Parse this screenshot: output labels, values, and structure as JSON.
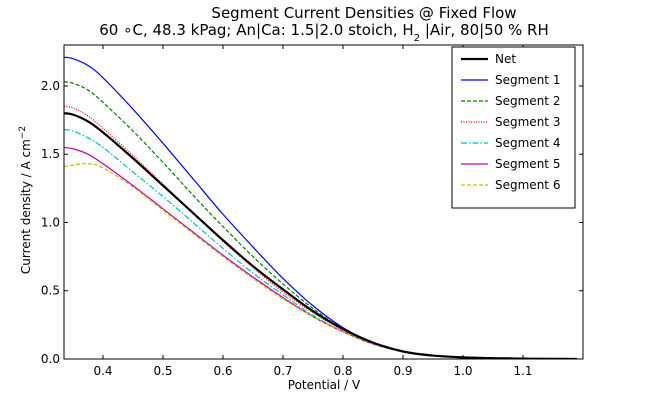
{
  "chart_data": {
    "type": "line",
    "title_line1": "Segment Current Densities @ Fixed Flow",
    "title_line2_parts": [
      "60  ∘C, 48.3 kPag; An|Ca: 1.5|2.0 stoich, H",
      "2",
      " |Air, 80|50 % RH"
    ],
    "xlabel": "Potential / V",
    "ylabel_parts": [
      "Current density / A cm",
      "−2"
    ],
    "xlim": [
      0.335,
      1.2
    ],
    "ylim": [
      0,
      2.3
    ],
    "xticks": [
      0.4,
      0.5,
      0.6,
      0.7,
      0.8,
      0.9,
      1.0,
      1.1
    ],
    "xtick_labels": [
      "0.4",
      "0.5",
      "0.6",
      "0.7",
      "0.8",
      "0.9",
      "1.0",
      "1.1"
    ],
    "yticks": [
      0.0,
      0.5,
      1.0,
      1.5,
      2.0
    ],
    "ytick_labels": [
      "0.0",
      "0.5",
      "1.0",
      "1.5",
      "2.0"
    ],
    "grid": false,
    "legend_position": "top-right",
    "x": [
      0.335,
      0.35,
      0.375,
      0.4,
      0.45,
      0.5,
      0.55,
      0.6,
      0.65,
      0.7,
      0.75,
      0.8,
      0.85,
      0.9,
      0.95,
      1.0,
      1.05,
      1.1,
      1.15,
      1.19
    ],
    "series": [
      {
        "name": "Net",
        "color": "#000000",
        "dash": "solid",
        "width": 2.2,
        "values": [
          1.8,
          1.79,
          1.74,
          1.66,
          1.47,
          1.27,
          1.07,
          0.87,
          0.68,
          0.51,
          0.35,
          0.22,
          0.12,
          0.055,
          0.025,
          0.012,
          0.006,
          0.003,
          0.001,
          0.0
        ]
      },
      {
        "name": "Segment 1",
        "color": "#0000ff",
        "dash": "solid",
        "width": 1.2,
        "values": [
          2.21,
          2.2,
          2.15,
          2.06,
          1.83,
          1.58,
          1.32,
          1.06,
          0.82,
          0.59,
          0.39,
          0.23,
          0.12,
          0.055,
          0.025,
          0.012,
          0.006,
          0.003,
          0.001,
          0.0
        ]
      },
      {
        "name": "Segment 2",
        "color": "#008000",
        "dash": "4,2",
        "width": 1.2,
        "values": [
          2.03,
          2.02,
          1.97,
          1.88,
          1.67,
          1.44,
          1.2,
          0.97,
          0.75,
          0.55,
          0.37,
          0.22,
          0.12,
          0.055,
          0.025,
          0.012,
          0.006,
          0.003,
          0.001,
          0.0
        ]
      },
      {
        "name": "Segment 3",
        "color": "#ff0000",
        "dash": "1,1.5",
        "width": 1.2,
        "values": [
          1.85,
          1.84,
          1.78,
          1.69,
          1.49,
          1.28,
          1.07,
          0.86,
          0.67,
          0.49,
          0.34,
          0.21,
          0.12,
          0.055,
          0.025,
          0.012,
          0.006,
          0.003,
          0.001,
          0.0
        ]
      },
      {
        "name": "Segment 4",
        "color": "#00bfbf",
        "dash": "6,2,1.5,2",
        "width": 1.2,
        "values": [
          1.68,
          1.67,
          1.62,
          1.55,
          1.37,
          1.19,
          1.0,
          0.81,
          0.63,
          0.47,
          0.32,
          0.2,
          0.11,
          0.055,
          0.025,
          0.012,
          0.006,
          0.003,
          0.001,
          0.0
        ]
      },
      {
        "name": "Segment 5",
        "color": "#bf00bf",
        "dash": "solid",
        "width": 1.2,
        "values": [
          1.55,
          1.54,
          1.5,
          1.43,
          1.27,
          1.1,
          0.93,
          0.76,
          0.6,
          0.45,
          0.31,
          0.2,
          0.11,
          0.055,
          0.025,
          0.012,
          0.006,
          0.003,
          0.001,
          0.0
        ]
      },
      {
        "name": "Segment 6",
        "color": "#bfbf00",
        "dash": "4,2",
        "width": 1.2,
        "values": [
          1.41,
          1.42,
          1.43,
          1.4,
          1.26,
          1.09,
          0.92,
          0.75,
          0.59,
          0.44,
          0.31,
          0.2,
          0.11,
          0.055,
          0.025,
          0.012,
          0.006,
          0.003,
          0.001,
          0.0
        ]
      }
    ]
  }
}
